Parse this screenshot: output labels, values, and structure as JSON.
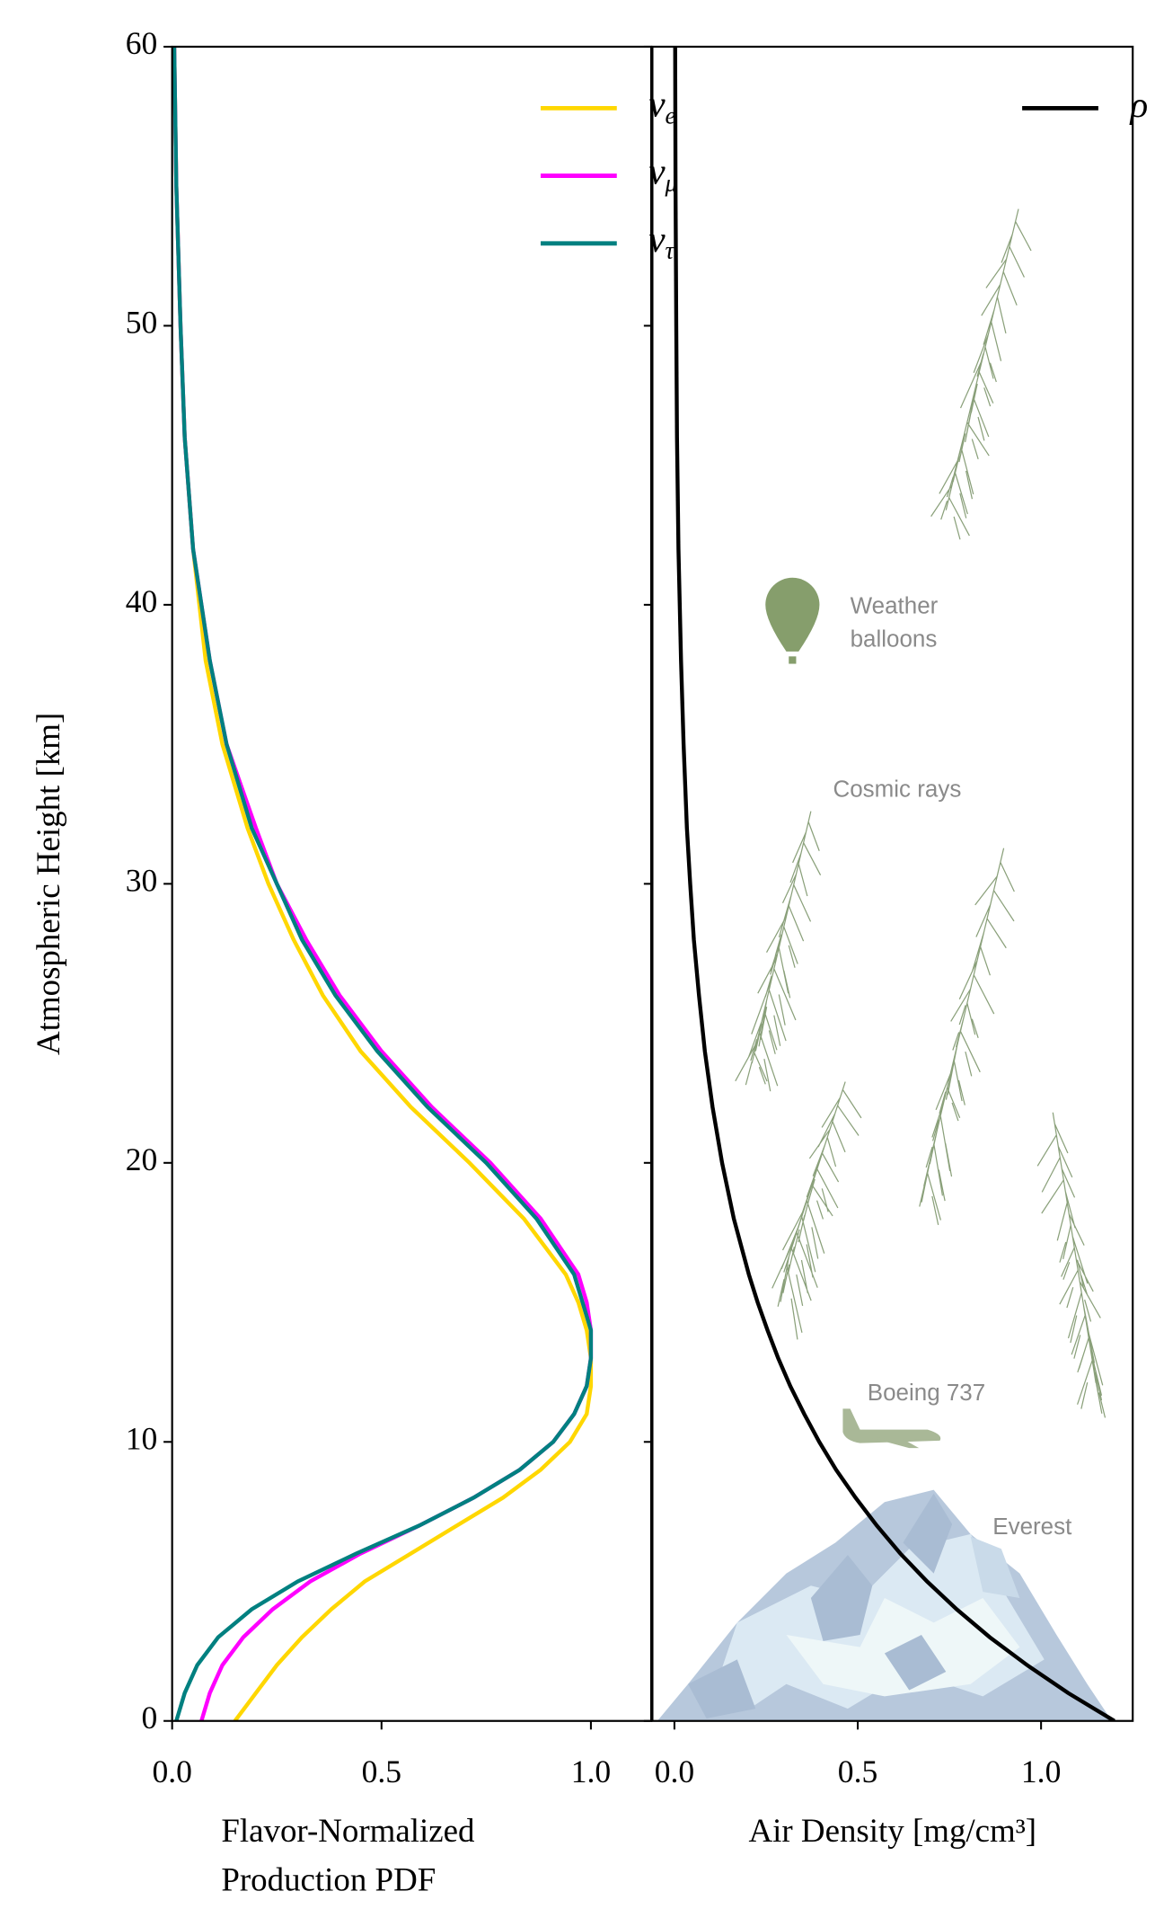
{
  "chart_data": [
    {
      "type": "line",
      "ylabel": "Atmospheric Height [km]",
      "xlabel": [
        "Flavor-Normalized",
        "Production PDF"
      ],
      "xlim": [
        0,
        1.144
      ],
      "ylim": [
        0,
        60
      ],
      "xticks": [
        {
          "value": 0,
          "label": "0.0"
        },
        0.5,
        {
          "value": 1,
          "label": "1.0"
        }
      ],
      "yticks": [
        0,
        10,
        20,
        30,
        40,
        50,
        60
      ],
      "legend": "upper right",
      "y": [
        0,
        1,
        2,
        3,
        4,
        5,
        6,
        7,
        8,
        9,
        10,
        11,
        12,
        13,
        14,
        15,
        16,
        18,
        20,
        22,
        24,
        26,
        28,
        30,
        32,
        35,
        38,
        42,
        46,
        50,
        55,
        60
      ],
      "series": [
        {
          "name": "νe",
          "color": "#ffd700",
          "values": [
            0.15,
            0.2,
            0.25,
            0.31,
            0.38,
            0.46,
            0.57,
            0.68,
            0.79,
            0.88,
            0.95,
            0.99,
            1.0,
            1.0,
            0.99,
            0.97,
            0.94,
            0.84,
            0.71,
            0.57,
            0.45,
            0.36,
            0.29,
            0.23,
            0.18,
            0.12,
            0.08,
            0.05,
            0.03,
            0.02,
            0.01,
            0.005
          ]
        },
        {
          "name": "νμ",
          "color": "#ff00ff",
          "values": [
            0.07,
            0.09,
            0.12,
            0.17,
            0.24,
            0.33,
            0.45,
            0.59,
            0.72,
            0.83,
            0.91,
            0.96,
            0.99,
            1.0,
            1.0,
            0.99,
            0.97,
            0.88,
            0.76,
            0.62,
            0.5,
            0.4,
            0.32,
            0.25,
            0.2,
            0.13,
            0.09,
            0.05,
            0.03,
            0.02,
            0.01,
            0.005
          ]
        },
        {
          "name": "ντ",
          "color": "#008080",
          "values": [
            0.01,
            0.03,
            0.06,
            0.11,
            0.19,
            0.3,
            0.44,
            0.59,
            0.72,
            0.83,
            0.91,
            0.96,
            0.99,
            1.0,
            1.0,
            0.98,
            0.96,
            0.87,
            0.75,
            0.61,
            0.49,
            0.39,
            0.31,
            0.25,
            0.19,
            0.13,
            0.09,
            0.05,
            0.03,
            0.02,
            0.01,
            0.005
          ]
        }
      ]
    },
    {
      "type": "line",
      "xlabel": [
        "Air Density [mg/cm³]"
      ],
      "xlim": [
        -0.06,
        1.25
      ],
      "ylim": [
        0,
        60
      ],
      "xticks": [
        {
          "value": 0,
          "label": "0.0"
        },
        0.5,
        {
          "value": 1,
          "label": "1.0"
        }
      ],
      "yticks": [
        0,
        10,
        20,
        30,
        40,
        50,
        60
      ],
      "legend": "upper right",
      "y": [
        0,
        1,
        2,
        3,
        4,
        5,
        6,
        7,
        8,
        9,
        10,
        11,
        12,
        13,
        14,
        15,
        16,
        18,
        20,
        22,
        24,
        26,
        28,
        30,
        32,
        35,
        38,
        42,
        46,
        50,
        55,
        60
      ],
      "series": [
        {
          "name": "ρ",
          "color": "#000000",
          "values": [
            1.2,
            1.074,
            0.962,
            0.86,
            0.77,
            0.689,
            0.616,
            0.552,
            0.494,
            0.441,
            0.395,
            0.354,
            0.316,
            0.283,
            0.254,
            0.227,
            0.203,
            0.162,
            0.13,
            0.104,
            0.083,
            0.067,
            0.053,
            0.043,
            0.034,
            0.025,
            0.018,
            0.011,
            0.007,
            0.005,
            0.003,
            0.002
          ]
        }
      ],
      "annotations": {
        "weather": [
          "Weather",
          "balloons"
        ],
        "cosmic": "Cosmic rays",
        "boeing": "Boeing 737",
        "everest": "Everest"
      }
    }
  ]
}
